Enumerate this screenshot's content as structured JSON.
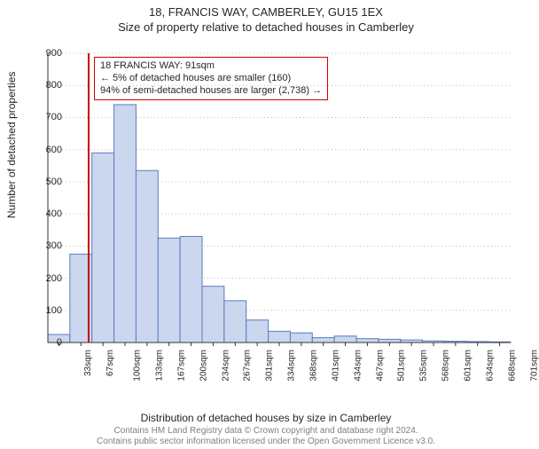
{
  "header": {
    "line1": "18, FRANCIS WAY, CAMBERLEY, GU15 1EX",
    "line2": "Size of property relative to detached houses in Camberley"
  },
  "chart": {
    "type": "histogram",
    "y_label": "Number of detached properties",
    "x_label": "Distribution of detached houses by size in Camberley",
    "ylim": [
      0,
      900
    ],
    "ytick_step": 100,
    "yticks": [
      0,
      100,
      200,
      300,
      400,
      500,
      600,
      700,
      800,
      900
    ],
    "xticks": [
      "33sqm",
      "67sqm",
      "100sqm",
      "133sqm",
      "167sqm",
      "200sqm",
      "234sqm",
      "267sqm",
      "301sqm",
      "334sqm",
      "368sqm",
      "401sqm",
      "434sqm",
      "467sqm",
      "501sqm",
      "535sqm",
      "568sqm",
      "601sqm",
      "634sqm",
      "668sqm",
      "701sqm"
    ],
    "values": [
      25,
      275,
      590,
      740,
      535,
      325,
      330,
      175,
      130,
      70,
      35,
      30,
      15,
      20,
      12,
      10,
      8,
      5,
      4,
      3,
      2
    ],
    "bar_fill": "#cbd7ee",
    "bar_stroke": "#5a7bbf",
    "bar_stroke_width": 1,
    "grid_color": "#bfbfbf",
    "axis_color": "#333333",
    "background_color": "#ffffff",
    "marker_line": {
      "x_category_index_after": 1,
      "color": "#cc0000",
      "width": 2
    },
    "label_fontsize": 12,
    "tick_fontsize": 11
  },
  "callout": {
    "border_color": "#cc0000",
    "line1": "18 FRANCIS WAY: 91sqm",
    "line2": "← 5% of detached houses are smaller (160)",
    "line3": "94% of semi-detached houses are larger (2,738) →"
  },
  "footer": {
    "line1": "Contains HM Land Registry data © Crown copyright and database right 2024.",
    "line2": "Contains public sector information licensed under the Open Government Licence v3.0."
  }
}
